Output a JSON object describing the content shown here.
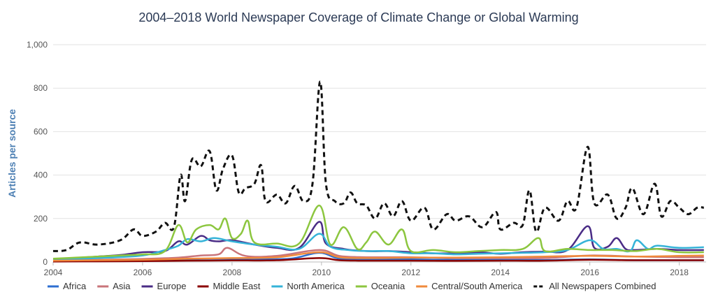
{
  "chart_data": {
    "type": "line",
    "title": "2004–2018 World Newspaper Coverage of Climate Change or Global Warming",
    "xlabel": "",
    "ylabel": "Articles per source",
    "xlim": [
      2004,
      2018.6
    ],
    "ylim": [
      0,
      1000
    ],
    "x_ticks": [
      2004,
      2006,
      2008,
      2010,
      2012,
      2014,
      2016,
      2018
    ],
    "x_tick_labels": [
      "2004",
      "2006",
      "2008",
      "2010",
      "2012",
      "2014",
      "2016",
      "2018"
    ],
    "y_ticks": [
      0,
      200,
      400,
      600,
      800,
      1000
    ],
    "y_tick_labels": [
      "0",
      "200",
      "400",
      "600",
      "800",
      "1,000"
    ],
    "grid": "horizontal",
    "legend_position": "bottom",
    "series": [
      {
        "name": "Africa",
        "color": "#2e6fd1",
        "points": [
          [
            2004,
            4
          ],
          [
            2005,
            5
          ],
          [
            2006,
            6
          ],
          [
            2006.8,
            10
          ],
          [
            2007.3,
            14
          ],
          [
            2007.8,
            15
          ],
          [
            2008.5,
            14
          ],
          [
            2009.3,
            15
          ],
          [
            2009.95,
            42
          ],
          [
            2010.4,
            15
          ],
          [
            2011,
            12
          ],
          [
            2012,
            12
          ],
          [
            2013,
            10
          ],
          [
            2014,
            10
          ],
          [
            2015,
            9
          ],
          [
            2016,
            12
          ],
          [
            2017,
            8
          ],
          [
            2018,
            8
          ],
          [
            2018.55,
            8
          ]
        ]
      },
      {
        "name": "Asia",
        "color": "#c9747a",
        "points": [
          [
            2004,
            8
          ],
          [
            2005,
            10
          ],
          [
            2006,
            14
          ],
          [
            2006.8,
            20
          ],
          [
            2007.3,
            30
          ],
          [
            2007.7,
            35
          ],
          [
            2007.9,
            65
          ],
          [
            2008.3,
            28
          ],
          [
            2009,
            28
          ],
          [
            2009.95,
            55
          ],
          [
            2010.4,
            28
          ],
          [
            2011,
            22
          ],
          [
            2012,
            22
          ],
          [
            2013,
            18
          ],
          [
            2014,
            18
          ],
          [
            2015,
            18
          ],
          [
            2016,
            30
          ],
          [
            2017,
            25
          ],
          [
            2018,
            22
          ],
          [
            2018.55,
            22
          ]
        ]
      },
      {
        "name": "Europe",
        "color": "#4a2c86",
        "points": [
          [
            2004,
            10
          ],
          [
            2004.5,
            18
          ],
          [
            2005,
            25
          ],
          [
            2005.5,
            32
          ],
          [
            2006,
            45
          ],
          [
            2006.5,
            50
          ],
          [
            2006.8,
            95
          ],
          [
            2007,
            80
          ],
          [
            2007.3,
            120
          ],
          [
            2007.5,
            100
          ],
          [
            2007.7,
            95
          ],
          [
            2008,
            100
          ],
          [
            2008.5,
            80
          ],
          [
            2009,
            65
          ],
          [
            2009.5,
            65
          ],
          [
            2009.95,
            185
          ],
          [
            2010.1,
            85
          ],
          [
            2010.5,
            60
          ],
          [
            2011,
            50
          ],
          [
            2011.5,
            50
          ],
          [
            2012,
            45
          ],
          [
            2012.5,
            40
          ],
          [
            2013,
            40
          ],
          [
            2013.5,
            45
          ],
          [
            2014,
            38
          ],
          [
            2014.5,
            45
          ],
          [
            2015,
            48
          ],
          [
            2015.5,
            55
          ],
          [
            2015.95,
            165
          ],
          [
            2016.1,
            65
          ],
          [
            2016.4,
            70
          ],
          [
            2016.6,
            110
          ],
          [
            2016.8,
            60
          ],
          [
            2017,
            55
          ],
          [
            2017.5,
            60
          ],
          [
            2018,
            55
          ],
          [
            2018.55,
            55
          ]
        ]
      },
      {
        "name": "Middle East",
        "color": "#8b0000",
        "points": [
          [
            2004,
            2
          ],
          [
            2005,
            3
          ],
          [
            2006,
            4
          ],
          [
            2007,
            6
          ],
          [
            2008,
            7
          ],
          [
            2009,
            8
          ],
          [
            2009.95,
            18
          ],
          [
            2010.4,
            8
          ],
          [
            2011,
            6
          ],
          [
            2012,
            6
          ],
          [
            2013,
            5
          ],
          [
            2014,
            6
          ],
          [
            2015,
            6
          ],
          [
            2016,
            10
          ],
          [
            2017,
            8
          ],
          [
            2018,
            8
          ],
          [
            2018.55,
            8
          ]
        ]
      },
      {
        "name": "North America",
        "color": "#35b3d8",
        "points": [
          [
            2004,
            12
          ],
          [
            2005,
            18
          ],
          [
            2006,
            30
          ],
          [
            2006.5,
            55
          ],
          [
            2006.8,
            75
          ],
          [
            2007,
            105
          ],
          [
            2007.3,
            95
          ],
          [
            2007.6,
            110
          ],
          [
            2008,
            95
          ],
          [
            2008.5,
            80
          ],
          [
            2009,
            70
          ],
          [
            2009.5,
            60
          ],
          [
            2009.95,
            130
          ],
          [
            2010.2,
            70
          ],
          [
            2010.6,
            55
          ],
          [
            2011,
            50
          ],
          [
            2011.5,
            50
          ],
          [
            2012,
            40
          ],
          [
            2012.5,
            40
          ],
          [
            2013,
            35
          ],
          [
            2013.5,
            38
          ],
          [
            2014,
            40
          ],
          [
            2014.5,
            42
          ],
          [
            2015,
            45
          ],
          [
            2015.5,
            55
          ],
          [
            2016,
            100
          ],
          [
            2016.3,
            60
          ],
          [
            2016.6,
            60
          ],
          [
            2016.9,
            50
          ],
          [
            2017.05,
            100
          ],
          [
            2017.3,
            60
          ],
          [
            2017.5,
            75
          ],
          [
            2018,
            65
          ],
          [
            2018.55,
            68
          ]
        ]
      },
      {
        "name": "Oceania",
        "color": "#8cc63f",
        "points": [
          [
            2004,
            15
          ],
          [
            2004.5,
            20
          ],
          [
            2005,
            25
          ],
          [
            2005.5,
            30
          ],
          [
            2006,
            35
          ],
          [
            2006.5,
            50
          ],
          [
            2006.8,
            170
          ],
          [
            2007,
            90
          ],
          [
            2007.2,
            150
          ],
          [
            2007.5,
            170
          ],
          [
            2007.7,
            150
          ],
          [
            2007.85,
            200
          ],
          [
            2008,
            110
          ],
          [
            2008.2,
            130
          ],
          [
            2008.35,
            190
          ],
          [
            2008.5,
            90
          ],
          [
            2009,
            85
          ],
          [
            2009.5,
            85
          ],
          [
            2009.95,
            260
          ],
          [
            2010.2,
            80
          ],
          [
            2010.5,
            160
          ],
          [
            2010.8,
            60
          ],
          [
            2011,
            90
          ],
          [
            2011.2,
            140
          ],
          [
            2011.5,
            80
          ],
          [
            2011.8,
            150
          ],
          [
            2012,
            50
          ],
          [
            2012.5,
            55
          ],
          [
            2013,
            45
          ],
          [
            2013.5,
            50
          ],
          [
            2014,
            55
          ],
          [
            2014.5,
            60
          ],
          [
            2014.85,
            110
          ],
          [
            2015,
            50
          ],
          [
            2015.5,
            60
          ],
          [
            2016,
            55
          ],
          [
            2016.5,
            55
          ],
          [
            2017,
            50
          ],
          [
            2017.5,
            60
          ],
          [
            2018,
            45
          ],
          [
            2018.55,
            45
          ]
        ]
      },
      {
        "name": "Central/South America",
        "color": "#f08a3c",
        "points": [
          [
            2004,
            6
          ],
          [
            2005,
            8
          ],
          [
            2006,
            10
          ],
          [
            2007,
            15
          ],
          [
            2008,
            18
          ],
          [
            2009,
            22
          ],
          [
            2009.95,
            45
          ],
          [
            2010.4,
            22
          ],
          [
            2011,
            18
          ],
          [
            2012,
            20
          ],
          [
            2013,
            20
          ],
          [
            2014,
            22
          ],
          [
            2015,
            25
          ],
          [
            2016,
            28
          ],
          [
            2017,
            25
          ],
          [
            2018,
            28
          ],
          [
            2018.55,
            30
          ]
        ]
      },
      {
        "name": "All Newspapers Combined",
        "color": "#111111",
        "dashed": true,
        "points": [
          [
            2004,
            50
          ],
          [
            2004.3,
            55
          ],
          [
            2004.6,
            90
          ],
          [
            2005,
            80
          ],
          [
            2005.5,
            100
          ],
          [
            2005.8,
            150
          ],
          [
            2006,
            120
          ],
          [
            2006.3,
            140
          ],
          [
            2006.5,
            180
          ],
          [
            2006.7,
            160
          ],
          [
            2006.85,
            400
          ],
          [
            2006.95,
            280
          ],
          [
            2007.1,
            470
          ],
          [
            2007.3,
            440
          ],
          [
            2007.5,
            510
          ],
          [
            2007.65,
            330
          ],
          [
            2007.8,
            430
          ],
          [
            2008,
            490
          ],
          [
            2008.15,
            320
          ],
          [
            2008.3,
            340
          ],
          [
            2008.5,
            360
          ],
          [
            2008.65,
            445
          ],
          [
            2008.75,
            280
          ],
          [
            2009,
            310
          ],
          [
            2009.2,
            270
          ],
          [
            2009.4,
            350
          ],
          [
            2009.6,
            280
          ],
          [
            2009.8,
            360
          ],
          [
            2009.97,
            830
          ],
          [
            2010.1,
            360
          ],
          [
            2010.3,
            280
          ],
          [
            2010.5,
            270
          ],
          [
            2010.65,
            320
          ],
          [
            2010.8,
            270
          ],
          [
            2011,
            260
          ],
          [
            2011.2,
            200
          ],
          [
            2011.4,
            270
          ],
          [
            2011.6,
            210
          ],
          [
            2011.8,
            280
          ],
          [
            2012,
            190
          ],
          [
            2012.3,
            250
          ],
          [
            2012.5,
            150
          ],
          [
            2012.8,
            220
          ],
          [
            2013,
            190
          ],
          [
            2013.3,
            210
          ],
          [
            2013.6,
            160
          ],
          [
            2013.9,
            230
          ],
          [
            2014,
            150
          ],
          [
            2014.3,
            180
          ],
          [
            2014.5,
            170
          ],
          [
            2014.65,
            330
          ],
          [
            2014.8,
            140
          ],
          [
            2015,
            250
          ],
          [
            2015.3,
            190
          ],
          [
            2015.5,
            280
          ],
          [
            2015.7,
            250
          ],
          [
            2015.95,
            530
          ],
          [
            2016.1,
            270
          ],
          [
            2016.4,
            310
          ],
          [
            2016.6,
            200
          ],
          [
            2016.8,
            250
          ],
          [
            2016.95,
            340
          ],
          [
            2017.2,
            220
          ],
          [
            2017.45,
            360
          ],
          [
            2017.6,
            210
          ],
          [
            2017.8,
            280
          ],
          [
            2018,
            250
          ],
          [
            2018.2,
            220
          ],
          [
            2018.4,
            250
          ],
          [
            2018.55,
            250
          ]
        ]
      }
    ]
  }
}
